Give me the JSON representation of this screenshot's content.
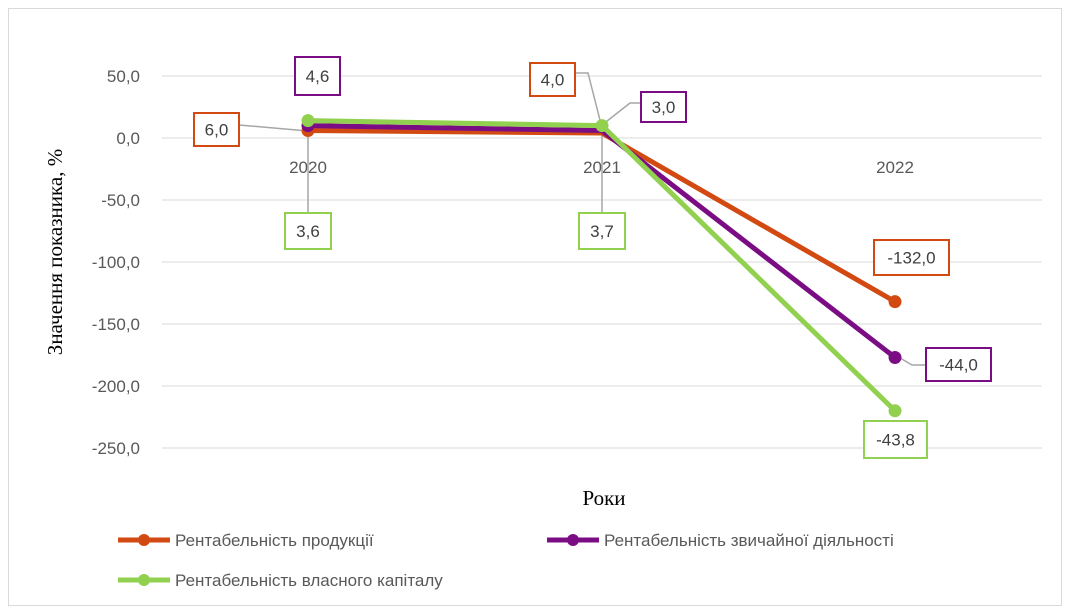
{
  "chart_data": {
    "type": "line",
    "title": "",
    "xlabel": "Роки",
    "ylabel": "Значення показника, %",
    "categories": [
      "2020",
      "2021",
      "2022"
    ],
    "ylim": [
      -250,
      50
    ],
    "yticks": [
      50,
      0,
      -50,
      -100,
      -150,
      -200,
      -250
    ],
    "ytick_labels": [
      "50,0",
      "0,0",
      "-50,0",
      "-100,0",
      "-150,0",
      "-200,0",
      "-250,0"
    ],
    "grid": true,
    "legend_position": "bottom",
    "series": [
      {
        "name": "Рентабельність продукції",
        "color": "#d24a12",
        "values": [
          6.0,
          4.0,
          -132.0
        ],
        "labels": [
          "6,0",
          "4,0",
          "-132,0"
        ]
      },
      {
        "name": "Рентабельність звичайної діяльності",
        "color": "#7b0d84",
        "values": [
          10.0,
          6.0,
          -177.0
        ],
        "labels": [
          "4,6",
          "3,0",
          "-44,0"
        ]
      },
      {
        "name": "Рентабельність власного капіталу",
        "color": "#92d050",
        "values": [
          14.0,
          10.0,
          -220.0
        ],
        "labels": [
          "3,6",
          "3,7",
          "-43,8"
        ]
      }
    ]
  }
}
